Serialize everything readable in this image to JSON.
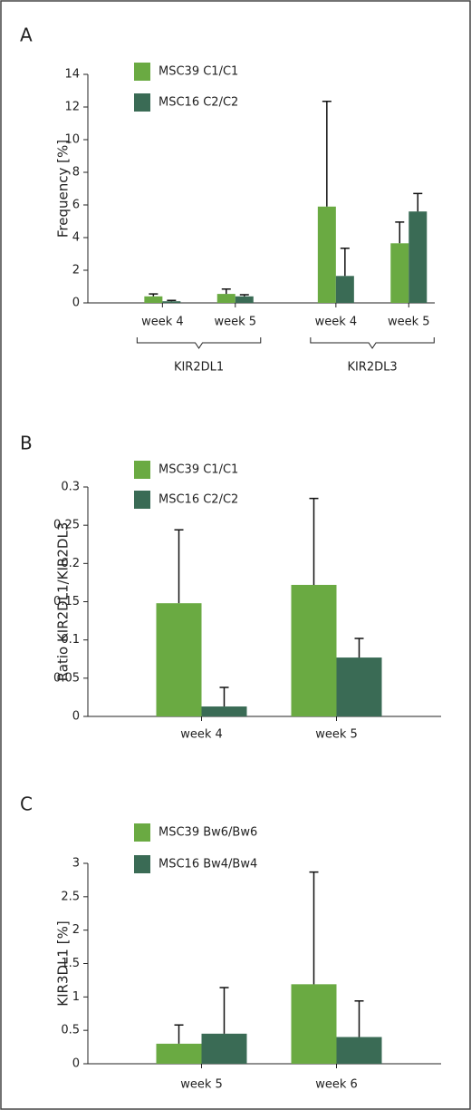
{
  "chart_data": [
    {
      "type": "bar",
      "panel": "A",
      "ylabel": "Frequency [%]",
      "categories": [
        "week 4",
        "week 5",
        "week 4",
        "week 5"
      ],
      "groups": [
        "KIR2DL1",
        "KIR2DL3"
      ],
      "series": [
        {
          "name": "MSC39 C1/C1",
          "color": "#6aaa42",
          "values": [
            0.4,
            0.55,
            5.9,
            3.65
          ],
          "errors": [
            0.15,
            0.3,
            6.45,
            1.3
          ]
        },
        {
          "name": "MSC16 C2/C2",
          "color": "#3a6b55",
          "values": [
            0.1,
            0.4,
            1.65,
            5.6
          ],
          "errors": [
            0.05,
            0.1,
            1.7,
            1.1
          ]
        }
      ],
      "ylim": [
        0,
        14
      ],
      "yticks": [
        0,
        2,
        4,
        6,
        8,
        10,
        12,
        14
      ]
    },
    {
      "type": "bar",
      "panel": "B",
      "ylabel": "Ratio KIR2DL1/KIR2DL3",
      "categories": [
        "week 4",
        "week 5"
      ],
      "series": [
        {
          "name": "MSC39 C1/C1",
          "color": "#6aaa42",
          "values": [
            0.148,
            0.172
          ],
          "errors": [
            0.096,
            0.113
          ]
        },
        {
          "name": "MSC16 C2/C2",
          "color": "#3a6b55",
          "values": [
            0.013,
            0.077
          ],
          "errors": [
            0.025,
            0.025
          ]
        }
      ],
      "ylim": [
        0,
        0.3
      ],
      "yticks": [
        0,
        0.05,
        0.1,
        0.15,
        0.2,
        0.25,
        0.3
      ]
    },
    {
      "type": "bar",
      "panel": "C",
      "ylabel": "KIR3DL1 [%]",
      "categories": [
        "week 5",
        "week 6"
      ],
      "series": [
        {
          "name": "MSC39 Bw6/Bw6",
          "color": "#6aaa42",
          "values": [
            0.3,
            1.19
          ],
          "errors": [
            0.28,
            1.68
          ]
        },
        {
          "name": "MSC16 Bw4/Bw4",
          "color": "#3a6b55",
          "values": [
            0.45,
            0.4
          ],
          "errors": [
            0.69,
            0.54
          ]
        }
      ],
      "ylim": [
        0,
        3
      ],
      "yticks": [
        0,
        0.5,
        1,
        1.5,
        2,
        2.5,
        3
      ]
    }
  ]
}
